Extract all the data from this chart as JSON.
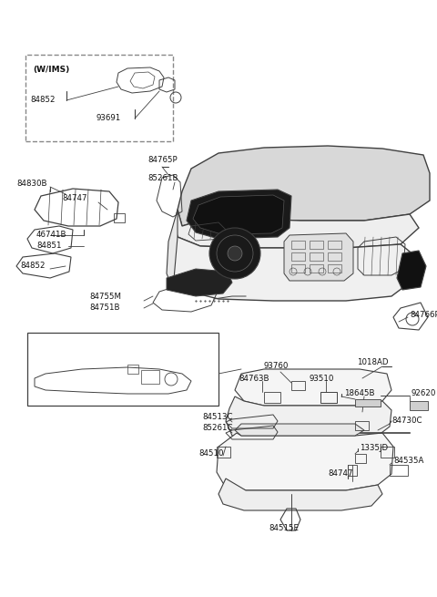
{
  "bg_color": "#ffffff",
  "line_color": "#404040",
  "text_color": "#111111",
  "fig_w": 4.8,
  "fig_h": 6.55,
  "dpi": 100,
  "xlim": [
    0,
    480
  ],
  "ylim": [
    0,
    655
  ]
}
